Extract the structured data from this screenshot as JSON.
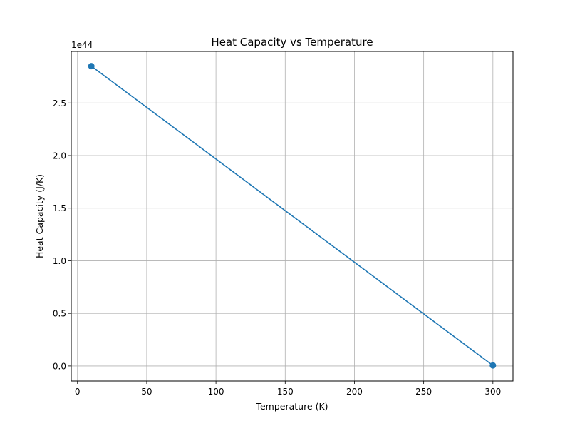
{
  "chart_data": {
    "type": "line",
    "title": "Heat Capacity vs Temperature",
    "xlabel": "Temperature (K)",
    "ylabel": "Heat Capacity (J/K)",
    "y_offset_text": "1e44",
    "y_scale_exponent": 44,
    "xlim": [
      -4.5,
      314.5
    ],
    "ylim": [
      -0.143,
      2.99
    ],
    "x_ticks": [
      0,
      50,
      100,
      150,
      200,
      250,
      300
    ],
    "x_tick_labels": [
      "0",
      "50",
      "100",
      "150",
      "200",
      "250",
      "300"
    ],
    "y_ticks": [
      0.0,
      0.5,
      1.0,
      1.5,
      2.0,
      2.5
    ],
    "y_tick_labels": [
      "0.0",
      "0.5",
      "1.0",
      "1.5",
      "2.0",
      "2.5"
    ],
    "grid": true,
    "series": [
      {
        "x": [
          10,
          300
        ],
        "y": [
          2.85,
          0.005
        ],
        "color": "#1f77b4",
        "marker": "circle"
      }
    ]
  }
}
